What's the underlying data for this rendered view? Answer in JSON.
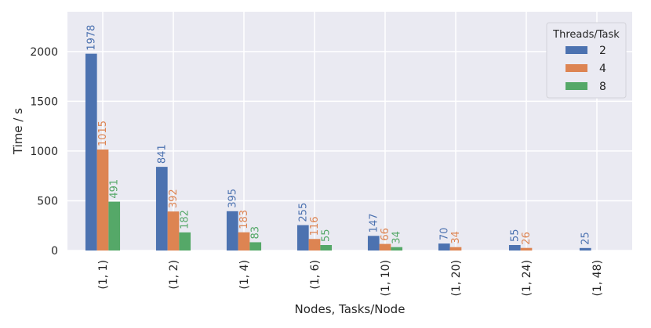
{
  "chart_data": {
    "type": "bar",
    "xlabel": "Nodes, Tasks/Node",
    "ylabel": "Time / s",
    "categories": [
      "(1, 1)",
      "(1, 2)",
      "(1, 4)",
      "(1, 6)",
      "(1, 10)",
      "(1, 20)",
      "(1, 24)",
      "(1, 48)"
    ],
    "series": [
      {
        "name": "2",
        "color": "#4c72b0",
        "values": [
          1978,
          841,
          395,
          255,
          147,
          70,
          55,
          25
        ]
      },
      {
        "name": "4",
        "color": "#dd8452",
        "values": [
          1015,
          392,
          183,
          116,
          66,
          34,
          26,
          null
        ]
      },
      {
        "name": "8",
        "color": "#55a868",
        "values": [
          491,
          182,
          83,
          55,
          34,
          null,
          null,
          null
        ]
      }
    ],
    "ylim": [
      0,
      2400
    ],
    "yticks": [
      0,
      500,
      1000,
      1500,
      2000
    ],
    "grid": true,
    "background": "#eaeaf2",
    "legend": {
      "title": "Threads/Task",
      "position": "top-right"
    }
  }
}
